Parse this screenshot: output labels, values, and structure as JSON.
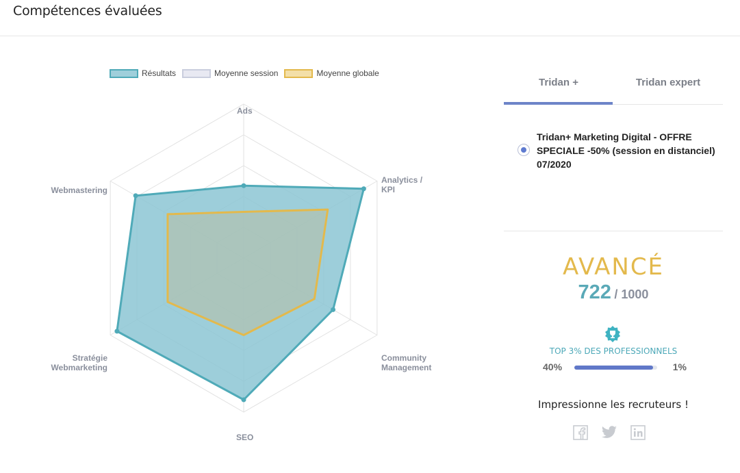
{
  "header": {
    "title": "Compétences évaluées"
  },
  "legend": [
    {
      "label": "Résultats",
      "fill": "#9fcfdb",
      "stroke": "#4faab8"
    },
    {
      "label": "Moyenne session",
      "fill": "#e8e9f2",
      "stroke": "#c9cddd"
    },
    {
      "label": "Moyenne globale",
      "fill": "#f3dfa8",
      "stroke": "#e3b94c"
    }
  ],
  "tabs": {
    "tab1": "Tridan +",
    "tab2": "Tridan expert",
    "active": "tab1"
  },
  "session": {
    "label": "Tridan+ Marketing Digital - OFFRE SPECIALE -50% (session en distanciel) 07/2020"
  },
  "result": {
    "level": "AVANCÉ",
    "score": "722",
    "score_max": "/ 1000",
    "top_label": "TOP 3% DES PROFESSIONNELS",
    "bar_left": "40%",
    "bar_right": "1%",
    "bar_progress": 0.95
  },
  "share": {
    "label": "Impressionne les recruteurs !",
    "icons": [
      "facebook-icon",
      "twitter-icon",
      "linkedin-icon"
    ]
  },
  "chart_data": {
    "type": "radar",
    "axes": [
      "Ads",
      "Analytics / KPI",
      "Community Management",
      "SEO",
      "Stratégie Webmarketing",
      "Webmastering"
    ],
    "series": [
      {
        "name": "Résultats",
        "values": [
          0.47,
          0.9,
          0.67,
          0.92,
          0.95,
          0.81
        ],
        "color": "#4faab8",
        "fill": "#8cc6d4"
      },
      {
        "name": "Moyenne globale",
        "values": [
          0.3,
          0.63,
          0.53,
          0.5,
          0.57,
          0.57
        ],
        "color": "#e3b94c",
        "fill": "#b4bfa8"
      }
    ],
    "colors": {
      "grid": "#e2e2e2"
    }
  }
}
